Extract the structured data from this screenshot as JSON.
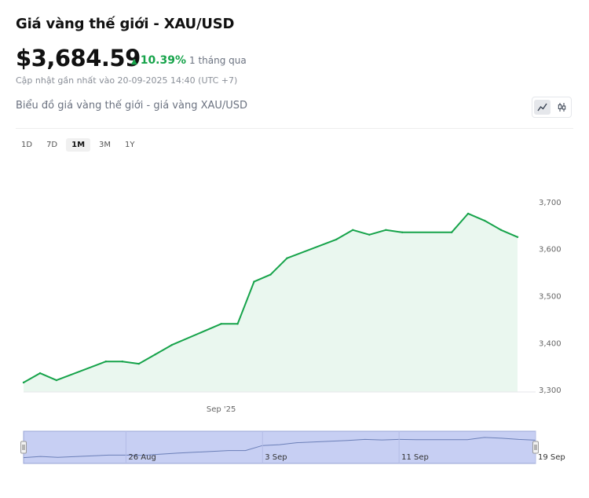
{
  "header": {
    "title": "Giá vàng thế giới - XAU/USD",
    "price": "$3,684.59",
    "change_pct": "10.39%",
    "change_period": "1 tháng qua",
    "updated": "Cập nhật gần nhất vào 20-09-2025 14:40 (UTC +7)",
    "chart_subtitle": "Biểu đồ giá vàng thế giới - giá vàng XAU/USD"
  },
  "toggle": {
    "line_icon": "line-chart-icon",
    "candle_icon": "candlestick-icon"
  },
  "ranges": [
    {
      "label": "1D",
      "active": false
    },
    {
      "label": "7D",
      "active": false
    },
    {
      "label": "1M",
      "active": true
    },
    {
      "label": "3M",
      "active": false
    },
    {
      "label": "1Y",
      "active": false
    }
  ],
  "colors": {
    "up": "#16a34a",
    "line": "#16a34a",
    "fill": "#eaf7ef",
    "navigator_sel": "#c7cff3"
  },
  "chart_data": {
    "type": "area",
    "x": [
      "2025-08-20",
      "2025-08-21",
      "2025-08-22",
      "2025-08-25",
      "2025-08-26",
      "2025-08-27",
      "2025-08-28",
      "2025-08-29",
      "2025-09-01",
      "2025-09-02",
      "2025-09-03",
      "2025-09-04",
      "2025-09-05",
      "2025-09-08",
      "2025-09-09",
      "2025-09-10",
      "2025-09-11",
      "2025-09-12",
      "2025-09-15",
      "2025-09-16",
      "2025-09-17",
      "2025-09-18",
      "2025-09-19"
    ],
    "y": [
      3315,
      3335,
      3320,
      3360,
      3360,
      3355,
      3375,
      3395,
      3440,
      3440,
      3530,
      3545,
      3580,
      3620,
      3640,
      3630,
      3640,
      3635,
      3635,
      3675,
      3660,
      3640,
      3625
    ],
    "ylim": [
      3295,
      3715
    ],
    "y_ticks": [
      "3,700",
      "3,600",
      "3,500",
      "3,400",
      "3,300"
    ],
    "y_tick_values": [
      3700,
      3600,
      3500,
      3400,
      3300
    ],
    "x_ticks": [
      "Sep '25"
    ],
    "navigator_ticks": [
      "26 Aug",
      "3 Sep",
      "11 Sep",
      "19 Sep"
    ],
    "grid": false
  }
}
